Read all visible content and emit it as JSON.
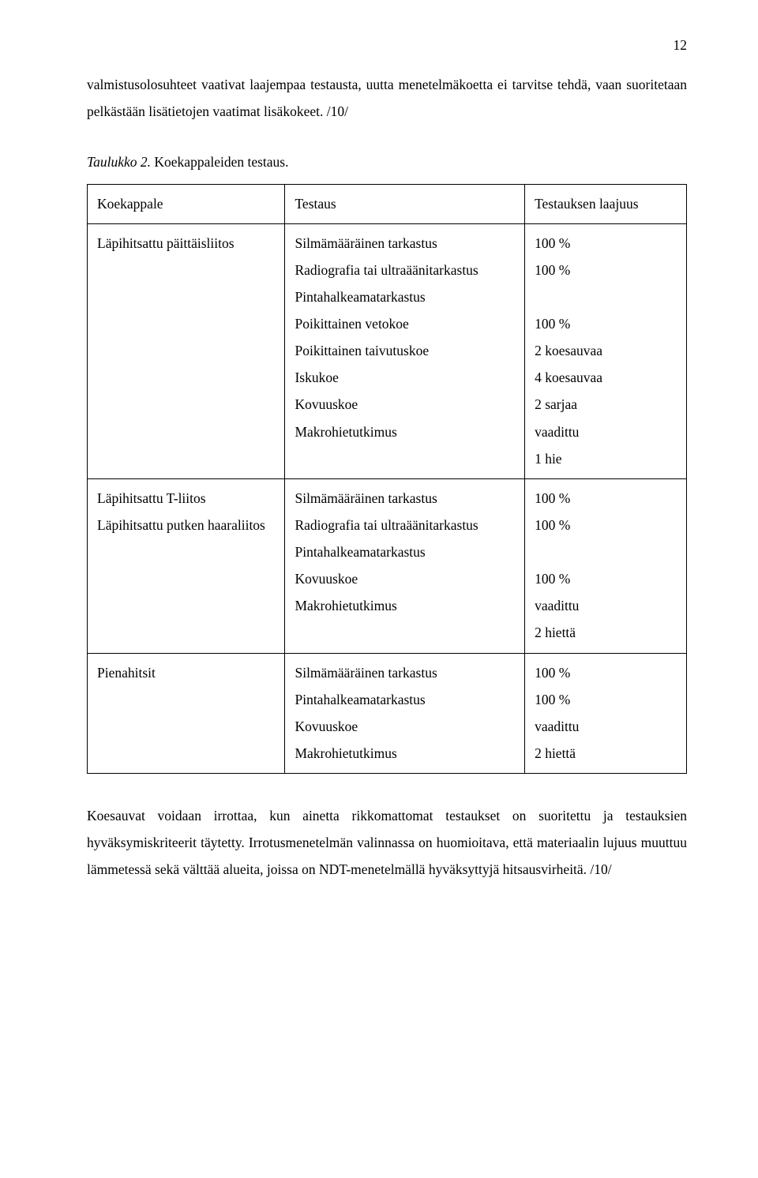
{
  "page_number": "12",
  "para1": "valmistusolosuhteet vaativat laajempaa testausta, uutta menetelmäkoetta ei tarvitse tehdä, vaan suoritetaan pelkästään lisätietojen vaatimat lisäkokeet. /10/",
  "table_caption": {
    "label": "Taulukko 2.",
    "text": " Koekappaleiden testaus."
  },
  "header": {
    "c1": "Koekappale",
    "c2": "Testaus",
    "c3": "Testauksen laajuus"
  },
  "rows": [
    {
      "c1": "Läpihitsattu päittäisliitos",
      "c2": [
        "Silmämääräinen tarkastus",
        "Radiografia tai ultraäänitarkastus",
        "Pintahalkeamatarkastus",
        "Poikittainen vetokoe",
        "Poikittainen taivutuskoe",
        "Iskukoe",
        "Kovuuskoe",
        "Makrohietutkimus"
      ],
      "c3": [
        "100 %",
        "100 %",
        "100 %",
        "2 koesauvaa",
        "4 koesauvaa",
        "2 sarjaa",
        "vaadittu",
        "1 hie"
      ]
    },
    {
      "c1": "Läpihitsattu T-liitos\nLäpihitsattu putken haaraliitos",
      "c2": [
        "Silmämääräinen tarkastus",
        "Radiografia tai ultraäänitarkastus",
        "Pintahalkeamatarkastus",
        "Kovuuskoe",
        "Makrohietutkimus"
      ],
      "c3": [
        "100 %",
        "100 %",
        "100 %",
        "vaadittu",
        "2 hiettä"
      ]
    },
    {
      "c1": "Pienahitsit",
      "c2": [
        "Silmämääräinen tarkastus",
        "Pintahalkeamatarkastus",
        "Kovuuskoe",
        "Makrohietutkimus"
      ],
      "c3": [
        "100 %",
        "100 %",
        "vaadittu",
        "2 hiettä"
      ]
    }
  ],
  "para2": "Koesauvat voidaan irrottaa, kun ainetta rikkomattomat testaukset on suoritettu ja testauksien hyväksymiskriteerit täytetty. Irrotusmenetelmän valinnassa on huomioitava, että materiaalin lujuus muuttuu lämmetessä sekä välttää alueita, joissa on NDT-menetelmällä hyväksyttyjä hitsausvirheitä. /10/"
}
